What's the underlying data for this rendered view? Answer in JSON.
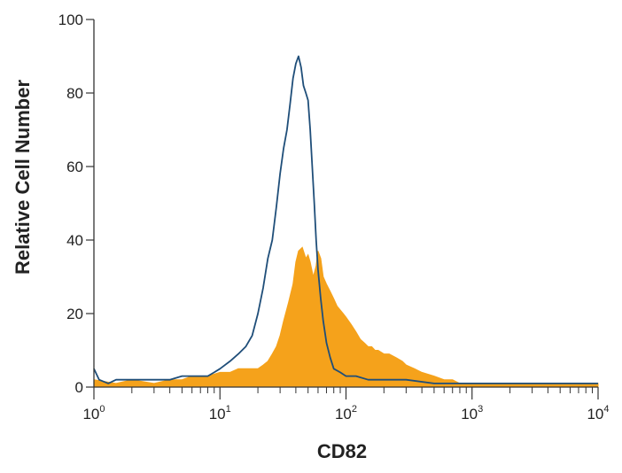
{
  "chart_data": {
    "type": "area",
    "xlabel": "CD82",
    "ylabel": "Relative Cell Number",
    "x_scale": "log",
    "xlim": [
      1,
      10000
    ],
    "ylim": [
      0,
      100
    ],
    "x_ticks": [
      {
        "base": "10",
        "exp": "0"
      },
      {
        "base": "10",
        "exp": "1"
      },
      {
        "base": "10",
        "exp": "2"
      },
      {
        "base": "10",
        "exp": "3"
      },
      {
        "base": "10",
        "exp": "4"
      }
    ],
    "y_ticks": [
      "0",
      "20",
      "40",
      "60",
      "80",
      "100"
    ],
    "grid": false,
    "series": [
      {
        "style": "filled",
        "color": "#f5a21b",
        "x": [
          1,
          1.5,
          2,
          3,
          4,
          5,
          6,
          7,
          8,
          10,
          12,
          14,
          16,
          18,
          20,
          22,
          24,
          26,
          28,
          30,
          32,
          35,
          38,
          40,
          42,
          45,
          48,
          50,
          52,
          55,
          58,
          60,
          63,
          66,
          70,
          75,
          80,
          85,
          90,
          95,
          100,
          110,
          120,
          130,
          140,
          150,
          160,
          170,
          180,
          200,
          220,
          250,
          280,
          300,
          350,
          400,
          500,
          600,
          700,
          800,
          1000,
          2000,
          3000,
          5000,
          8000,
          10000
        ],
        "y": [
          2,
          1,
          2,
          1,
          2,
          2,
          3,
          3,
          3,
          4,
          4,
          5,
          5,
          5,
          5,
          6,
          7,
          9,
          11,
          14,
          18,
          23,
          28,
          34,
          37,
          38,
          35,
          36,
          34,
          30,
          33,
          37,
          35,
          30,
          28,
          26,
          24,
          22,
          21,
          20,
          19,
          17,
          15,
          13,
          12,
          11,
          11,
          10,
          10,
          9,
          9,
          8,
          7,
          6,
          5,
          4,
          3,
          2,
          2,
          1,
          1,
          1,
          1,
          1,
          1,
          1
        ]
      },
      {
        "style": "line",
        "color": "#1f4e79",
        "x": [
          1,
          1.1,
          1.3,
          1.5,
          2,
          3,
          4,
          5,
          6,
          7,
          8,
          9,
          10,
          12,
          14,
          16,
          18,
          20,
          22,
          24,
          26,
          28,
          30,
          32,
          34,
          36,
          38,
          40,
          42,
          44,
          46,
          48,
          50,
          52,
          54,
          56,
          58,
          60,
          63,
          66,
          70,
          75,
          80,
          90,
          100,
          120,
          150,
          200,
          300,
          500,
          700,
          1000,
          2000,
          5000,
          8000,
          10000
        ],
        "y": [
          5,
          2,
          1,
          2,
          2,
          2,
          2,
          3,
          3,
          3,
          3,
          4,
          5,
          7,
          9,
          11,
          14,
          20,
          27,
          35,
          40,
          49,
          58,
          65,
          70,
          77,
          84,
          88,
          90,
          87,
          82,
          80,
          78,
          70,
          60,
          50,
          40,
          32,
          24,
          18,
          12,
          8,
          5,
          4,
          3,
          3,
          2,
          2,
          2,
          1,
          1,
          1,
          1,
          1,
          1,
          1
        ]
      }
    ]
  }
}
